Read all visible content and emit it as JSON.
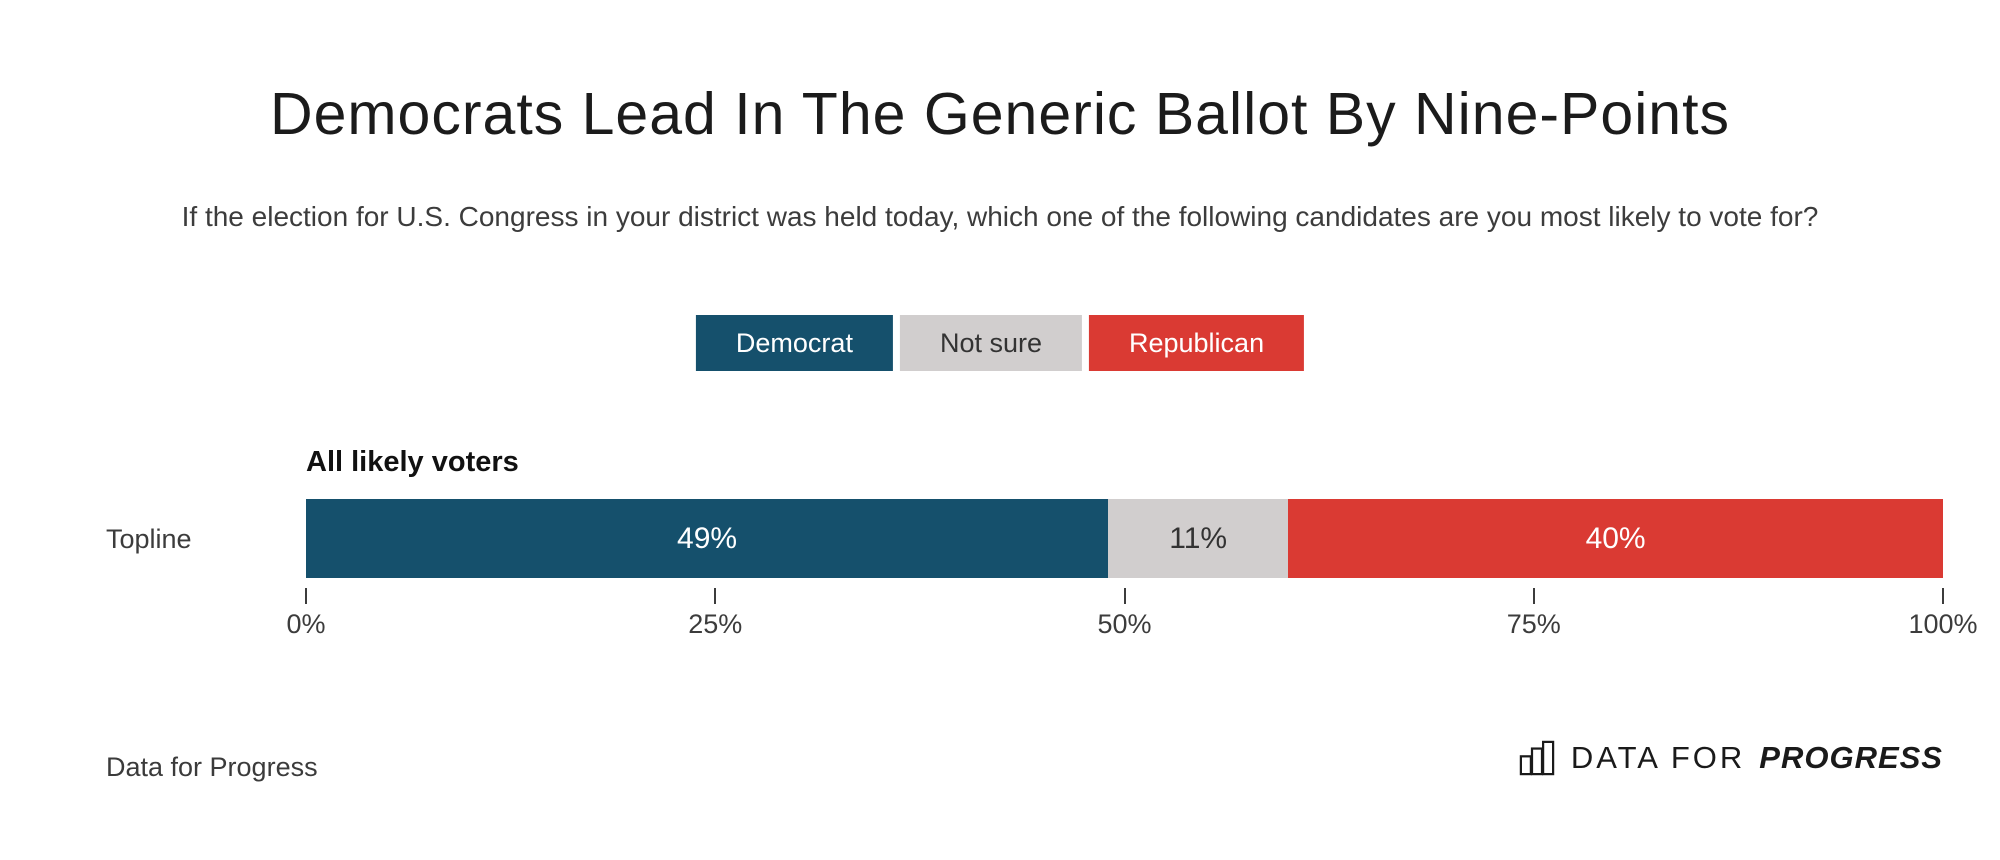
{
  "page": {
    "title": "Democrats Lead In The Generic Ballot By Nine-Points",
    "subtitle": "If the election for U.S. Congress in your district was held today, which one of the following candidates are you most likely to vote for?"
  },
  "colors": {
    "democrat": "#15506C",
    "not_sure": "#D1CECE",
    "republican": "#DA3A33",
    "title_text": "#1B1B1B",
    "body_text": "#3C3C3C",
    "white": "#FFFFFF"
  },
  "legend": [
    {
      "label": "Democrat",
      "color": "#15506C",
      "text_color": "#FFFFFF"
    },
    {
      "label": "Not sure",
      "color": "#D1CECE",
      "text_color": "#333333"
    },
    {
      "label": "Republican",
      "color": "#DA3A33",
      "text_color": "#FFFFFF"
    }
  ],
  "chart_data": {
    "type": "bar",
    "orientation": "horizontal-stacked",
    "title": "Democrats Lead In The Generic Ballot By Nine-Points",
    "group_label": "All likely voters",
    "categories": [
      "Topline"
    ],
    "series": [
      {
        "name": "Democrat",
        "values": [
          49
        ],
        "color": "#15506C",
        "label_color": "#FFFFFF"
      },
      {
        "name": "Not sure",
        "values": [
          11
        ],
        "color": "#D1CECE",
        "label_color": "#333333"
      },
      {
        "name": "Republican",
        "values": [
          40
        ],
        "color": "#DA3A33",
        "label_color": "#FFFFFF"
      }
    ],
    "value_suffix": "%",
    "xlim": [
      0,
      100
    ],
    "x_ticks": [
      {
        "value": 0,
        "label": "0%"
      },
      {
        "value": 25,
        "label": "25%"
      },
      {
        "value": 50,
        "label": "50%"
      },
      {
        "value": 75,
        "label": "75%"
      },
      {
        "value": 100,
        "label": "100%"
      }
    ],
    "grid": false,
    "legend_position": "top-center"
  },
  "footer": {
    "source_label": "Data for Progress",
    "logo": {
      "icon": "bar-chart-icon",
      "text_regular": "DATA FOR",
      "text_bold_italic": "PROGRESS"
    }
  }
}
